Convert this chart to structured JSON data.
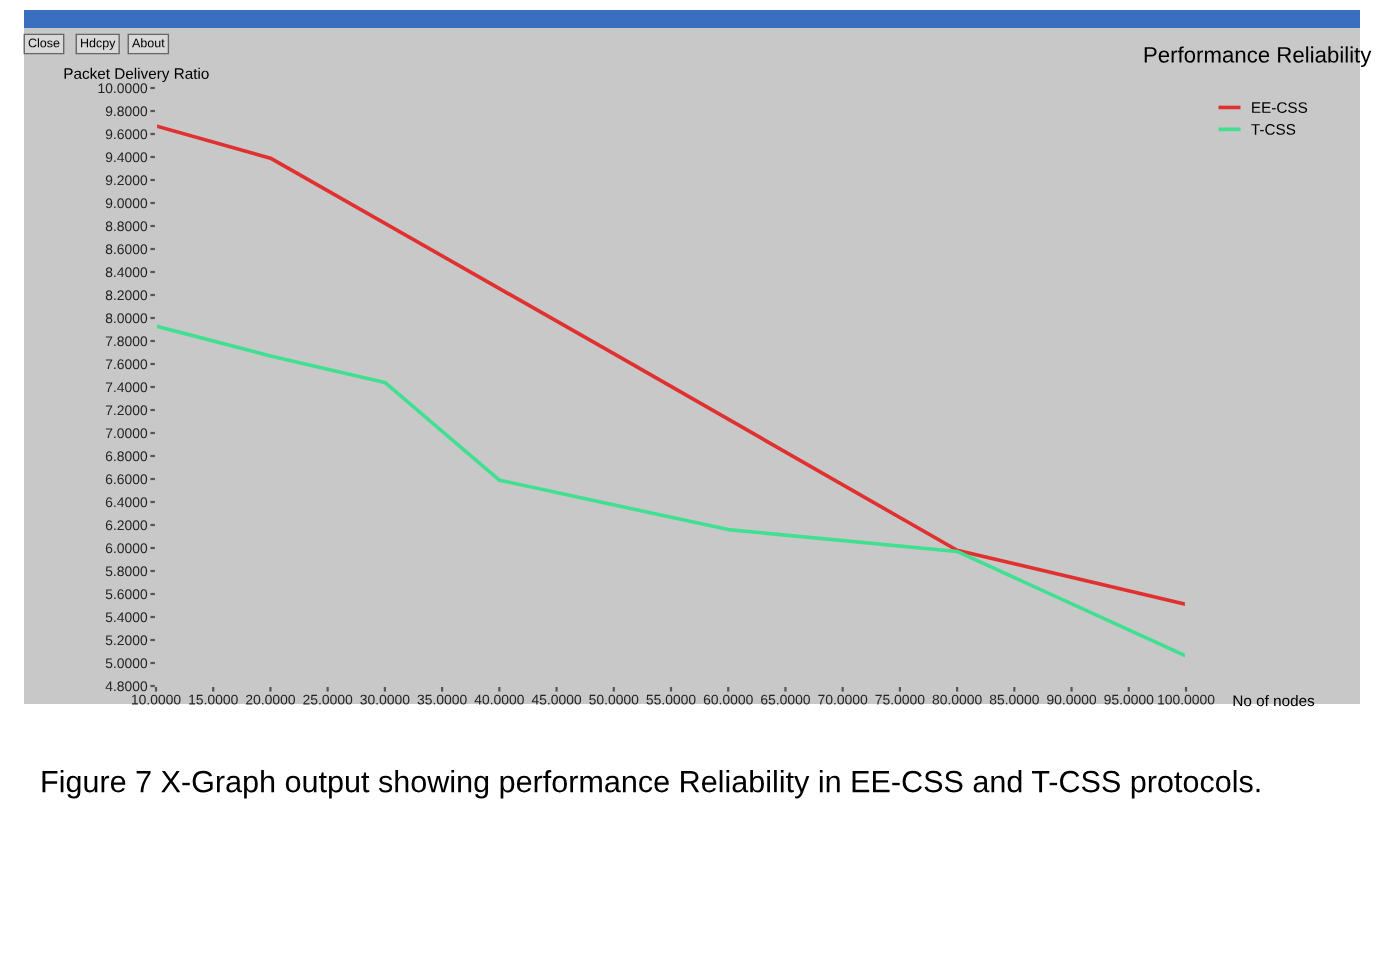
{
  "chart_data": {
    "type": "line",
    "title": "Performance Reliability",
    "ylabel": "Packet Delivery Ratio",
    "xlabel": "No of nodes",
    "annotations": [
      "Close",
      "Hdcpy",
      "About",
      "Figure 7 X-Graph output showing performance Reliability in EE-CSS and T-CSS protocols."
    ],
    "series": [
      {
        "name": "EE-CSS",
        "color": "#e03030",
        "x": [
          10,
          20,
          50,
          80,
          100
        ],
        "values": [
          9.67,
          9.39,
          7.69,
          5.98,
          5.51
        ]
      },
      {
        "name": "T-CSS",
        "color": "#40e090",
        "x": [
          10,
          20,
          30,
          40,
          60,
          80,
          100
        ],
        "values": [
          7.93,
          7.67,
          7.44,
          6.59,
          6.16,
          5.97,
          5.06
        ]
      }
    ],
    "xlim": [
      10,
      100
    ],
    "ylim": [
      4.8,
      10.0
    ],
    "xticks": [
      {
        "value": 10,
        "label": "10.0000"
      },
      {
        "value": 15,
        "label": "15.0000"
      },
      {
        "value": 20,
        "label": "20.0000"
      },
      {
        "value": 25,
        "label": "25.0000"
      },
      {
        "value": 30,
        "label": "30.0000"
      },
      {
        "value": 35,
        "label": "35.0000"
      },
      {
        "value": 40,
        "label": "40.0000"
      },
      {
        "value": 45,
        "label": "45.0000"
      },
      {
        "value": 50,
        "label": "50.0000"
      },
      {
        "value": 55,
        "label": "55.0000"
      },
      {
        "value": 60,
        "label": "60.0000"
      },
      {
        "value": 65,
        "label": "65.0000"
      },
      {
        "value": 70,
        "label": "70.0000"
      },
      {
        "value": 75,
        "label": "75.0000"
      },
      {
        "value": 80,
        "label": "80.0000"
      },
      {
        "value": 85,
        "label": "85.0000"
      },
      {
        "value": 90,
        "label": "90.0000"
      },
      {
        "value": 95,
        "label": "95.0000"
      },
      {
        "value": 100,
        "label": "100.0000"
      }
    ],
    "yticks": [
      {
        "value": 4.8,
        "label": "4.8000"
      },
      {
        "value": 5.0,
        "label": "5.0000"
      },
      {
        "value": 5.2,
        "label": "5.2000"
      },
      {
        "value": 5.4,
        "label": "5.4000"
      },
      {
        "value": 5.6,
        "label": "5.6000"
      },
      {
        "value": 5.8,
        "label": "5.8000"
      },
      {
        "value": 6.0,
        "label": "6.0000"
      },
      {
        "value": 6.2,
        "label": "6.2000"
      },
      {
        "value": 6.4,
        "label": "6.4000"
      },
      {
        "value": 6.6,
        "label": "6.6000"
      },
      {
        "value": 6.8,
        "label": "6.8000"
      },
      {
        "value": 7.0,
        "label": "7.0000"
      },
      {
        "value": 7.2,
        "label": "7.2000"
      },
      {
        "value": 7.4,
        "label": "7.4000"
      },
      {
        "value": 7.6,
        "label": "7.6000"
      },
      {
        "value": 7.8,
        "label": "7.8000"
      },
      {
        "value": 8.0,
        "label": "8.0000"
      },
      {
        "value": 8.2,
        "label": "8.2000"
      },
      {
        "value": 8.4,
        "label": "8.4000"
      },
      {
        "value": 8.6,
        "label": "8.6000"
      },
      {
        "value": 8.8,
        "label": "8.8000"
      },
      {
        "value": 9.0,
        "label": "9.0000"
      },
      {
        "value": 9.2,
        "label": "9.2000"
      },
      {
        "value": 9.4,
        "label": "9.4000"
      },
      {
        "value": 9.6,
        "label": "9.6000"
      },
      {
        "value": 9.8,
        "label": "9.8000"
      },
      {
        "value": 10.0,
        "label": "10.0000"
      }
    ],
    "grid": false,
    "legend": "top right",
    "marker": "none",
    "line_style": "solid"
  }
}
